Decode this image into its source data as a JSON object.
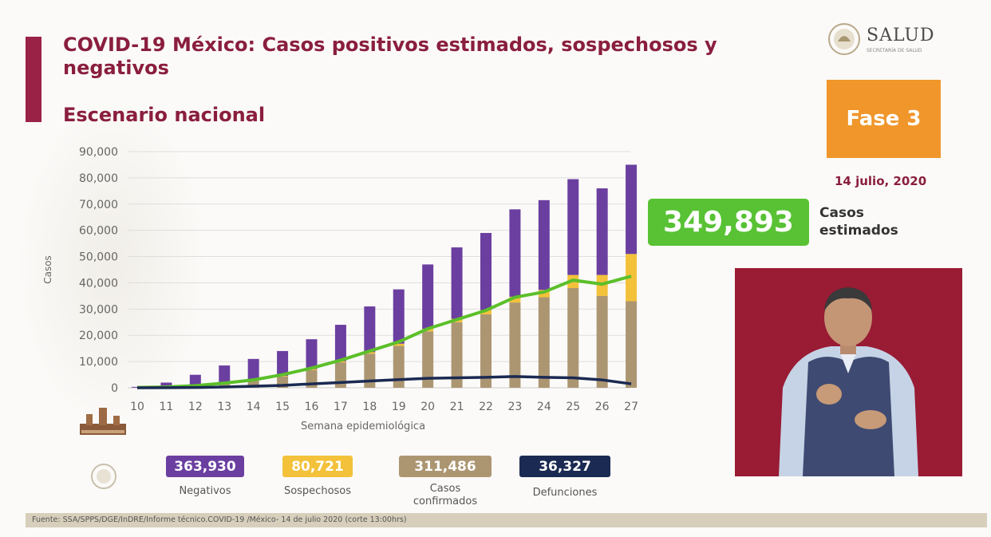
{
  "header": {
    "title": "COVID-19 México: Casos positivos estimados, sospechosos y negativos",
    "subtitle": "Escenario nacional"
  },
  "logo": {
    "text": "SALUD",
    "sub": "SECRETARÍA DE SALUD"
  },
  "phase": "Fase 3",
  "date": "14 julio, 2020",
  "estimated": {
    "value": "349,893",
    "label": "Casos estimados"
  },
  "colors": {
    "negativos": "#6b3fa0",
    "sospechosos": "#f3c13a",
    "confirmados": "#ac9672",
    "defunciones": "#1b2a52",
    "estimated_line": "#5cbf2a",
    "title": "#8a1e3f",
    "phase": "#f0962a"
  },
  "chart_data": {
    "type": "bar",
    "stacked": true,
    "xlabel": "Semana epidemiológica",
    "ylabel": "Casos",
    "ylim": [
      0,
      90000
    ],
    "yticks": [
      "0",
      "10,000",
      "20,000",
      "30,000",
      "40,000",
      "50,000",
      "60,000",
      "70,000",
      "80,000",
      "90,000"
    ],
    "grid": true,
    "categories": [
      "10",
      "11",
      "12",
      "13",
      "14",
      "15",
      "16",
      "17",
      "18",
      "19",
      "20",
      "21",
      "22",
      "23",
      "24",
      "25",
      "26",
      "27"
    ],
    "series": [
      {
        "name": "Casos confirmados",
        "values": [
          30,
          250,
          700,
          1500,
          2700,
          4300,
          6800,
          9700,
          13000,
          16000,
          21500,
          25000,
          28000,
          32500,
          34500,
          38000,
          35000,
          33000
        ]
      },
      {
        "name": "Sospechosos",
        "values": [
          5,
          30,
          60,
          100,
          150,
          250,
          350,
          450,
          600,
          800,
          1000,
          1300,
          1600,
          2200,
          2800,
          5000,
          8000,
          18000
        ]
      },
      {
        "name": "Negativos",
        "values": [
          300,
          1700,
          4200,
          6900,
          8150,
          9450,
          11350,
          13850,
          17400,
          20700,
          24500,
          27200,
          29400,
          33300,
          34200,
          36500,
          33000,
          34000
        ]
      }
    ],
    "lines": [
      {
        "name": "Casos estimados",
        "values": [
          100,
          300,
          800,
          1800,
          3000,
          5000,
          7500,
          10500,
          14000,
          17500,
          22500,
          26000,
          29500,
          34500,
          36500,
          41000,
          39500,
          42500
        ]
      },
      {
        "name": "Defunciones",
        "values": [
          10,
          30,
          100,
          300,
          600,
          900,
          1500,
          2000,
          2600,
          3100,
          3600,
          3800,
          4000,
          4300,
          4000,
          3800,
          3000,
          1500
        ]
      }
    ]
  },
  "legend": [
    {
      "key": "negativos",
      "value": "363,930",
      "label": "Negativos"
    },
    {
      "key": "sospechosos",
      "value": "80,721",
      "label": "Sospechosos"
    },
    {
      "key": "confirmados",
      "value": "311,486",
      "label": "Casos confirmados"
    },
    {
      "key": "defunciones",
      "value": "36,327",
      "label": "Defunciones"
    }
  ],
  "footer": "Fuente: SSA/SPPS/DGE/InDRE/Informe técnico.COVID-19 /México- 14 de julio 2020 (corte 13:00hrs)"
}
